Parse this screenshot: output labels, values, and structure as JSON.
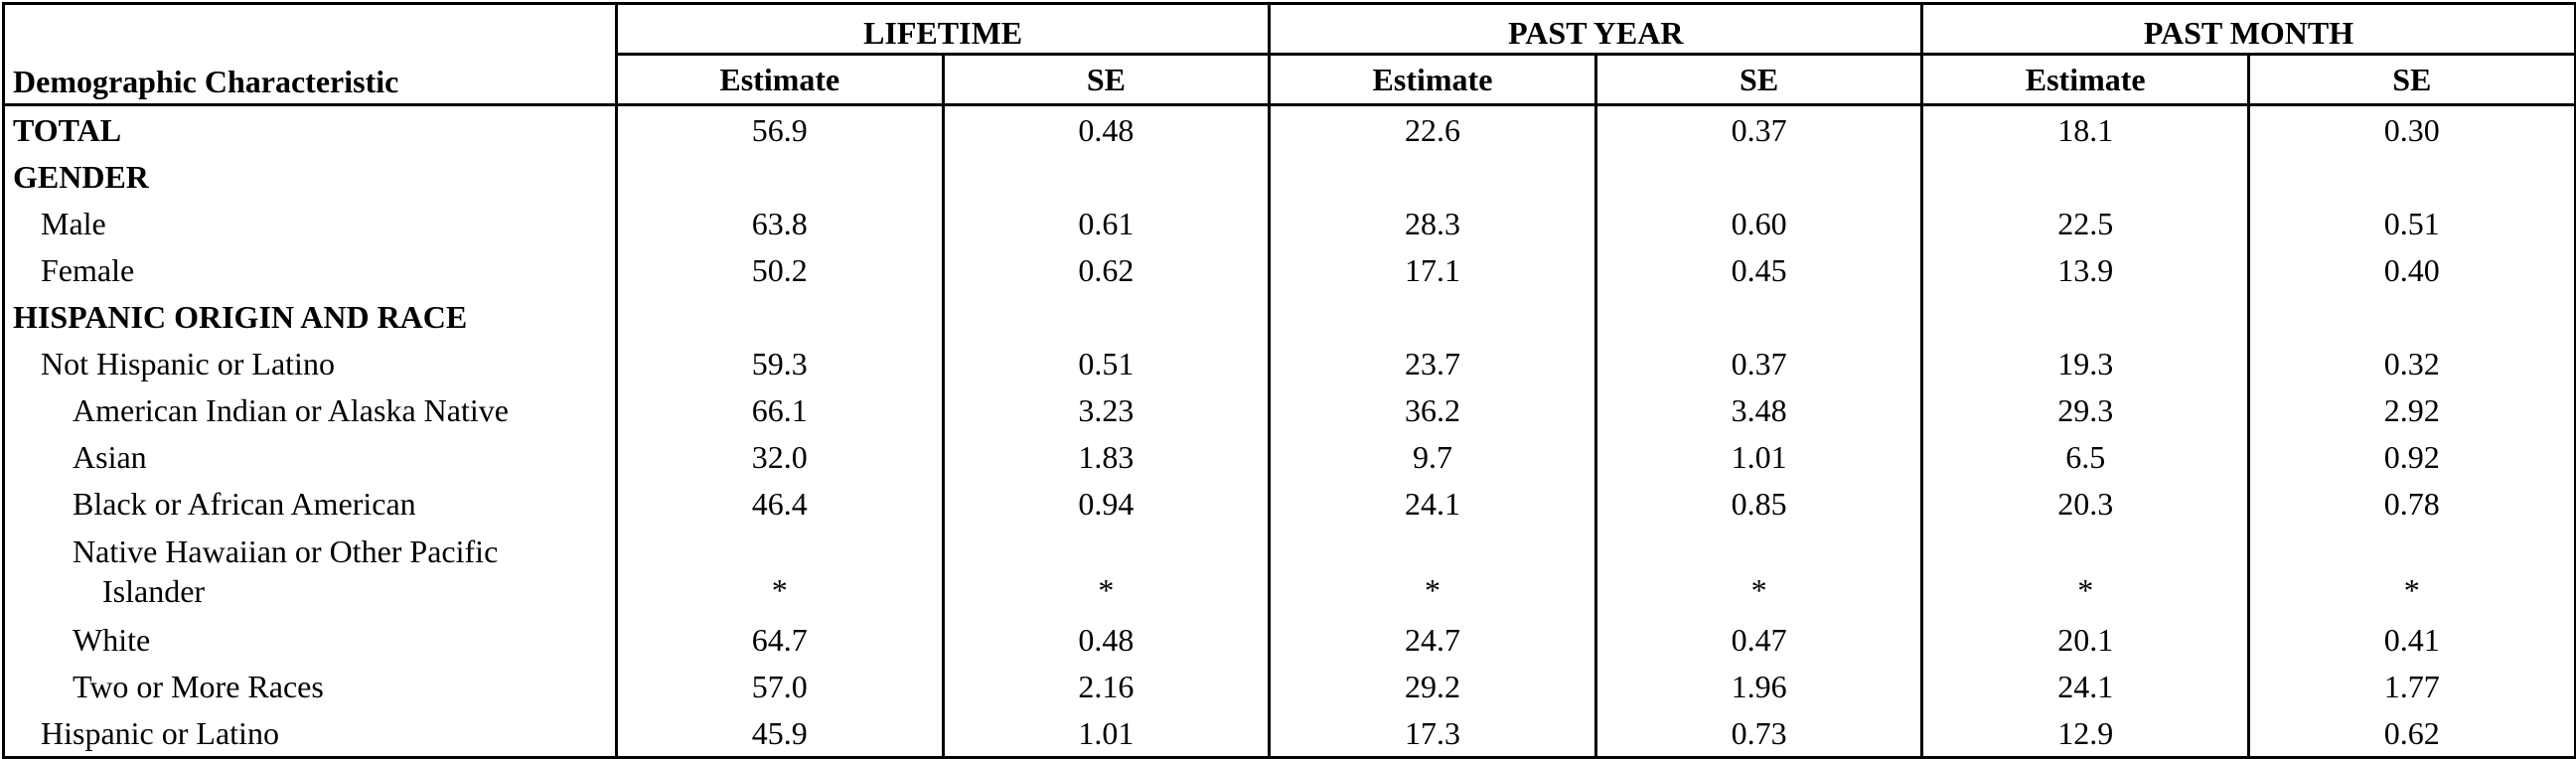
{
  "header": {
    "label_col": "Demographic Characteristic",
    "groups": [
      "LIFETIME",
      "PAST YEAR",
      "PAST MONTH"
    ],
    "subcols": [
      "Estimate",
      "SE",
      "Estimate",
      "SE",
      "Estimate",
      "SE"
    ]
  },
  "rows": [
    {
      "label": "TOTAL",
      "values": [
        "56.9",
        "0.48",
        "22.6",
        "0.37",
        "18.1",
        "0.30"
      ]
    },
    {
      "label": "GENDER",
      "values": [
        "",
        "",
        "",
        "",
        "",
        ""
      ]
    },
    {
      "label": "Male",
      "values": [
        "63.8",
        "0.61",
        "28.3",
        "0.60",
        "22.5",
        "0.51"
      ]
    },
    {
      "label": "Female",
      "values": [
        "50.2",
        "0.62",
        "17.1",
        "0.45",
        "13.9",
        "0.40"
      ]
    },
    {
      "label": "HISPANIC ORIGIN AND RACE",
      "values": [
        "",
        "",
        "",
        "",
        "",
        ""
      ]
    },
    {
      "label": "Not Hispanic or Latino",
      "values": [
        "59.3",
        "0.51",
        "23.7",
        "0.37",
        "19.3",
        "0.32"
      ]
    },
    {
      "label": "American Indian or Alaska Native",
      "values": [
        "66.1",
        "3.23",
        "36.2",
        "3.48",
        "29.3",
        "2.92"
      ]
    },
    {
      "label": "Asian",
      "values": [
        "32.0",
        "1.83",
        "9.7",
        "1.01",
        "6.5",
        "0.92"
      ]
    },
    {
      "label": "Black or African American",
      "values": [
        "46.4",
        "0.94",
        "24.1",
        "0.85",
        "20.3",
        "0.78"
      ]
    },
    {
      "label_line1": "Native Hawaiian or Other Pacific",
      "label_line2": "Islander",
      "values": [
        "*",
        "*",
        "*",
        "*",
        "*",
        "*"
      ]
    },
    {
      "label": "White",
      "values": [
        "64.7",
        "0.48",
        "24.7",
        "0.47",
        "20.1",
        "0.41"
      ]
    },
    {
      "label": "Two or More Races",
      "values": [
        "57.0",
        "2.16",
        "29.2",
        "1.96",
        "24.1",
        "1.77"
      ]
    },
    {
      "label": "Hispanic or Latino",
      "values": [
        "45.9",
        "1.01",
        "17.3",
        "0.73",
        "12.9",
        "0.62"
      ]
    }
  ]
}
